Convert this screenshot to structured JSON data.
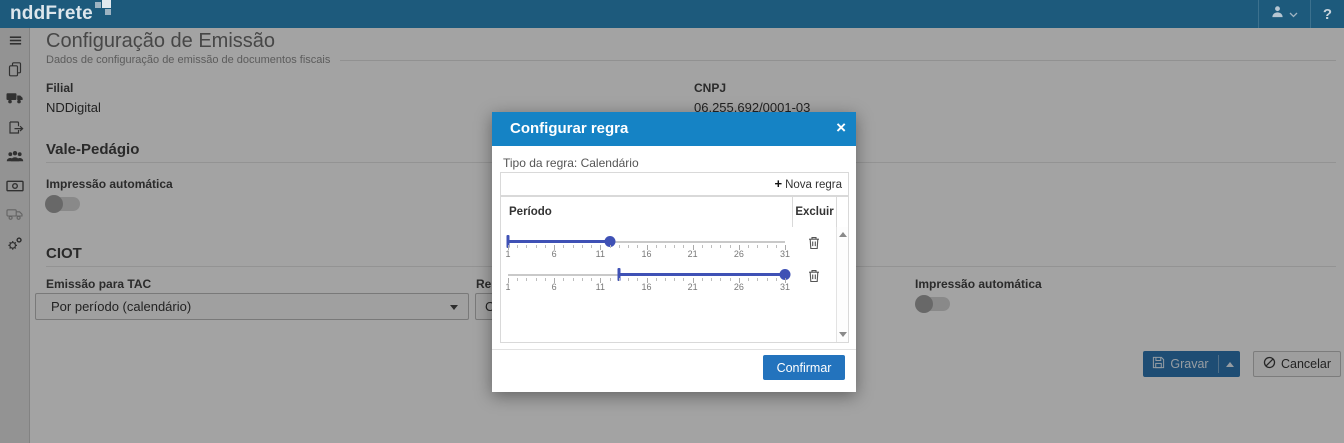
{
  "colors": {
    "topbar": "#1d5a7c",
    "modal_header": "#1583c5",
    "slider_accent": "#3f51b5",
    "confirm_button": "#2373bd",
    "primary_button": "#2e74ad"
  },
  "topbar": {
    "logo": "nddFrete",
    "help": "?",
    "icons": [
      "user-icon",
      "chevron-down-icon",
      "question-icon"
    ]
  },
  "sidebar": {
    "items": [
      {
        "icon": "menu-icon"
      },
      {
        "icon": "copy-documents-icon"
      },
      {
        "icon": "truck-icon"
      },
      {
        "icon": "document-export-icon"
      },
      {
        "icon": "users-icon"
      },
      {
        "icon": "money-icon"
      },
      {
        "icon": "delivery-truck-icon"
      },
      {
        "icon": "settings-gears-icon"
      }
    ]
  },
  "page": {
    "title": "Configuração de Emissão",
    "subtitle": "Dados de configuração de emissão de documentos fiscais",
    "filial": {
      "label": "Filial",
      "value": "NDDigital"
    },
    "cnpj": {
      "label": "CNPJ",
      "value": "06.255.692/0001-03"
    },
    "vale_pedagio": {
      "title": "Vale-Pedágio",
      "impressao_label": "Impressão automática",
      "impressao_on": false
    },
    "ciot": {
      "title": "CIOT",
      "emissao_tac_label": "Emissão para TAC",
      "emissao_tac_value": "Por período (calendário)",
      "regra_label_partial": "Re",
      "regra_value_partial": "C",
      "impressao_label": "Impressão automática",
      "impressao_on": false
    },
    "actions": {
      "gravar": "Gravar",
      "cancelar": "Cancelar"
    }
  },
  "modal": {
    "title": "Configurar regra",
    "close": "×",
    "tipo_regra": "Tipo da regra: Calendário",
    "nova_regra": {
      "plus": "+",
      "label": "Nova regra"
    },
    "columns": {
      "periodo": "Período",
      "excluir": "Excluir"
    },
    "slider_scale": {
      "min": 1,
      "max": 31,
      "tick_labels": [
        1,
        6,
        11,
        16,
        21,
        26,
        31
      ]
    },
    "rules": [
      {
        "start": 1,
        "end": 12
      },
      {
        "start": 13,
        "end": 31
      }
    ],
    "confirm": "Confirmar"
  }
}
